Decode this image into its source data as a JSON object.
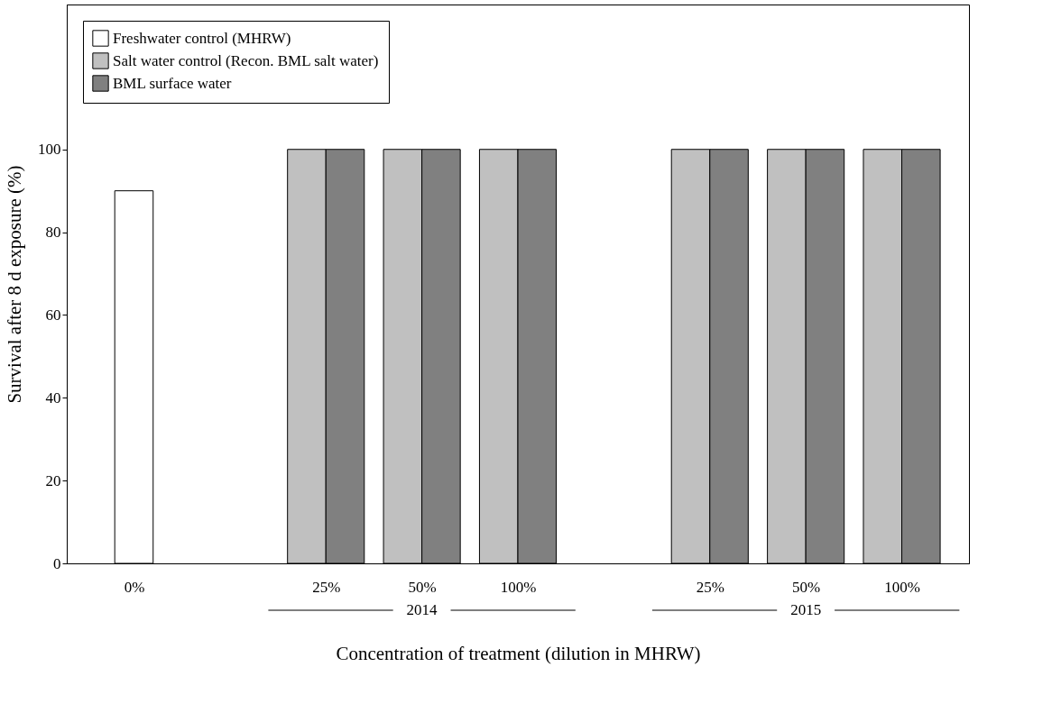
{
  "chart_data": {
    "type": "bar",
    "xlabel": "Concentration of treatment (dilution in MHRW)",
    "ylabel": "Survival after 8 d exposure (%)",
    "categories": [
      "0%",
      null,
      "25%",
      "50%",
      "100%",
      null,
      "25%",
      "50%",
      "100%"
    ],
    "series": [
      {
        "name": "Freshwater control (MHRW)",
        "color": "#ffffff",
        "values": [
          90,
          null,
          null,
          null,
          null,
          null,
          null,
          null,
          null
        ]
      },
      {
        "name": "Salt water control (Recon. BML salt water)",
        "color": "#c0c0c0",
        "values": [
          null,
          null,
          100,
          100,
          100,
          null,
          100,
          100,
          100
        ]
      },
      {
        "name": "BML surface water",
        "color": "#808080",
        "values": [
          null,
          null,
          100,
          100,
          100,
          null,
          100,
          100,
          100
        ]
      }
    ],
    "ylim": [
      0,
      135
    ],
    "yticks": [
      0,
      20,
      40,
      60,
      80,
      100
    ],
    "grid": false,
    "legend": "top left",
    "annotations": [
      "2014",
      "2015"
    ]
  }
}
